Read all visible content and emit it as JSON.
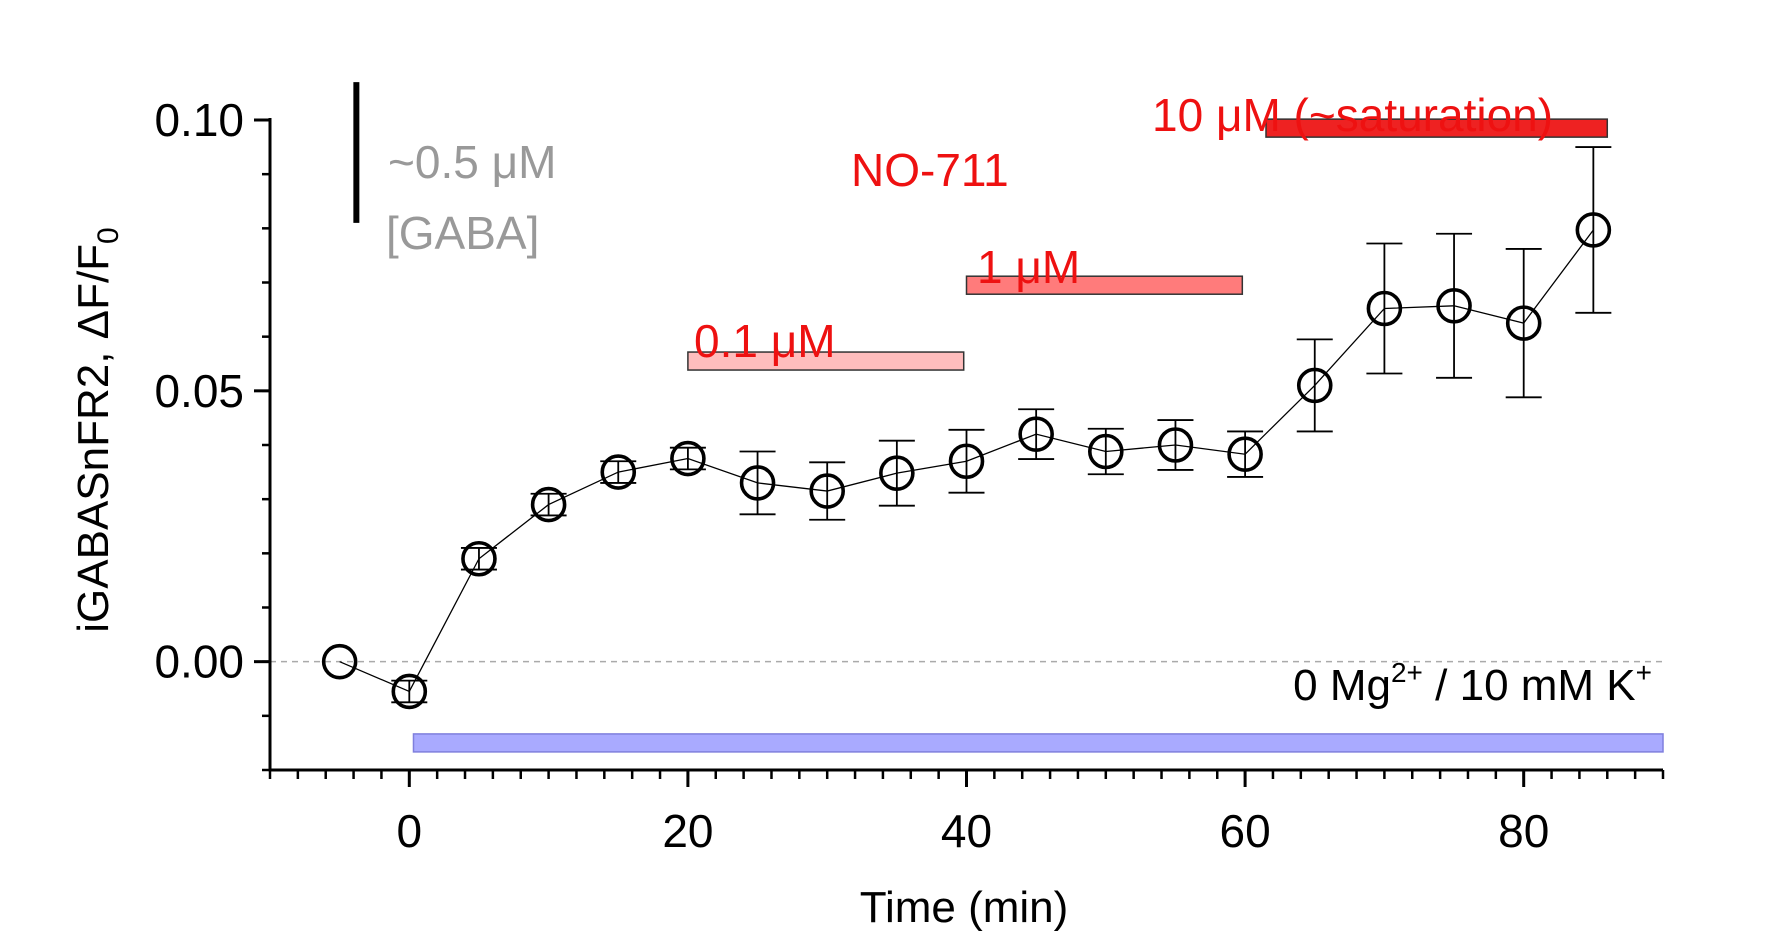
{
  "chart_data": {
    "type": "scatter",
    "xlabel": "Time (min)",
    "ylabel": "iGABASnFR2, ΔF/F",
    "ylabel_subscript": "0",
    "xlim": [
      -10,
      90
    ],
    "ylim": [
      -0.02,
      0.1
    ],
    "x_ticks": [
      0,
      20,
      40,
      60,
      80
    ],
    "x_tick_labels": [
      "0",
      "20",
      "40",
      "60",
      "80"
    ],
    "x_minor_step": 2,
    "y_ticks": [
      0.0,
      0.05,
      0.1
    ],
    "y_tick_labels": [
      "0.00",
      "0.05",
      "0.10"
    ],
    "y_minor_step": 0.01,
    "zero_line": true,
    "series": [
      {
        "x": [
          -5,
          0,
          5,
          10,
          15,
          20,
          25,
          30,
          35,
          40,
          45,
          50,
          55,
          60,
          65,
          70,
          75,
          80,
          85
        ],
        "y": [
          0.0,
          -0.0055,
          0.019,
          0.029,
          0.035,
          0.0375,
          0.033,
          0.0315,
          0.0348,
          0.037,
          0.042,
          0.0388,
          0.04,
          0.0383,
          0.051,
          0.0652,
          0.0657,
          0.0625,
          0.0797
        ],
        "error": [
          0.0,
          0.002,
          0.002,
          0.002,
          0.002,
          0.002,
          0.0058,
          0.0053,
          0.006,
          0.0058,
          0.0046,
          0.0042,
          0.0046,
          0.0042,
          0.0085,
          0.012,
          0.0133,
          0.0137,
          0.0153
        ]
      }
    ],
    "annotations": {
      "scale_bar": {
        "value": 0.026,
        "x": -3.8,
        "y_top": 0.107,
        "line1": "~0.5 μM",
        "line2": "[GABA]",
        "color": "#999999"
      },
      "drug_name": {
        "text": "NO-711",
        "color": "#ee1111"
      },
      "drug_bars": [
        {
          "label": "0.1 μM",
          "x_start": 20,
          "x_end": 39.8,
          "y": 0.0555,
          "fill": "#ffbdbd"
        },
        {
          "label": "1 μM",
          "x_start": 40,
          "x_end": 59.8,
          "y": 0.0695,
          "fill": "#ff7b7b"
        },
        {
          "label": "10 μM (~saturation)",
          "x_start": 61.5,
          "x_end": 86,
          "y": 0.0985,
          "fill": "#ee2222"
        }
      ],
      "label_color": "#ee1111",
      "condition_bar": {
        "x_start": 0.3,
        "x_end": 90,
        "y": -0.015,
        "fill": "#a9aaff",
        "stroke": "#7f7fdd"
      },
      "condition_label": {
        "pre": "0 Mg",
        "sup1": "2+",
        "mid": " / 10 mM K",
        "sup2": "+"
      }
    }
  }
}
